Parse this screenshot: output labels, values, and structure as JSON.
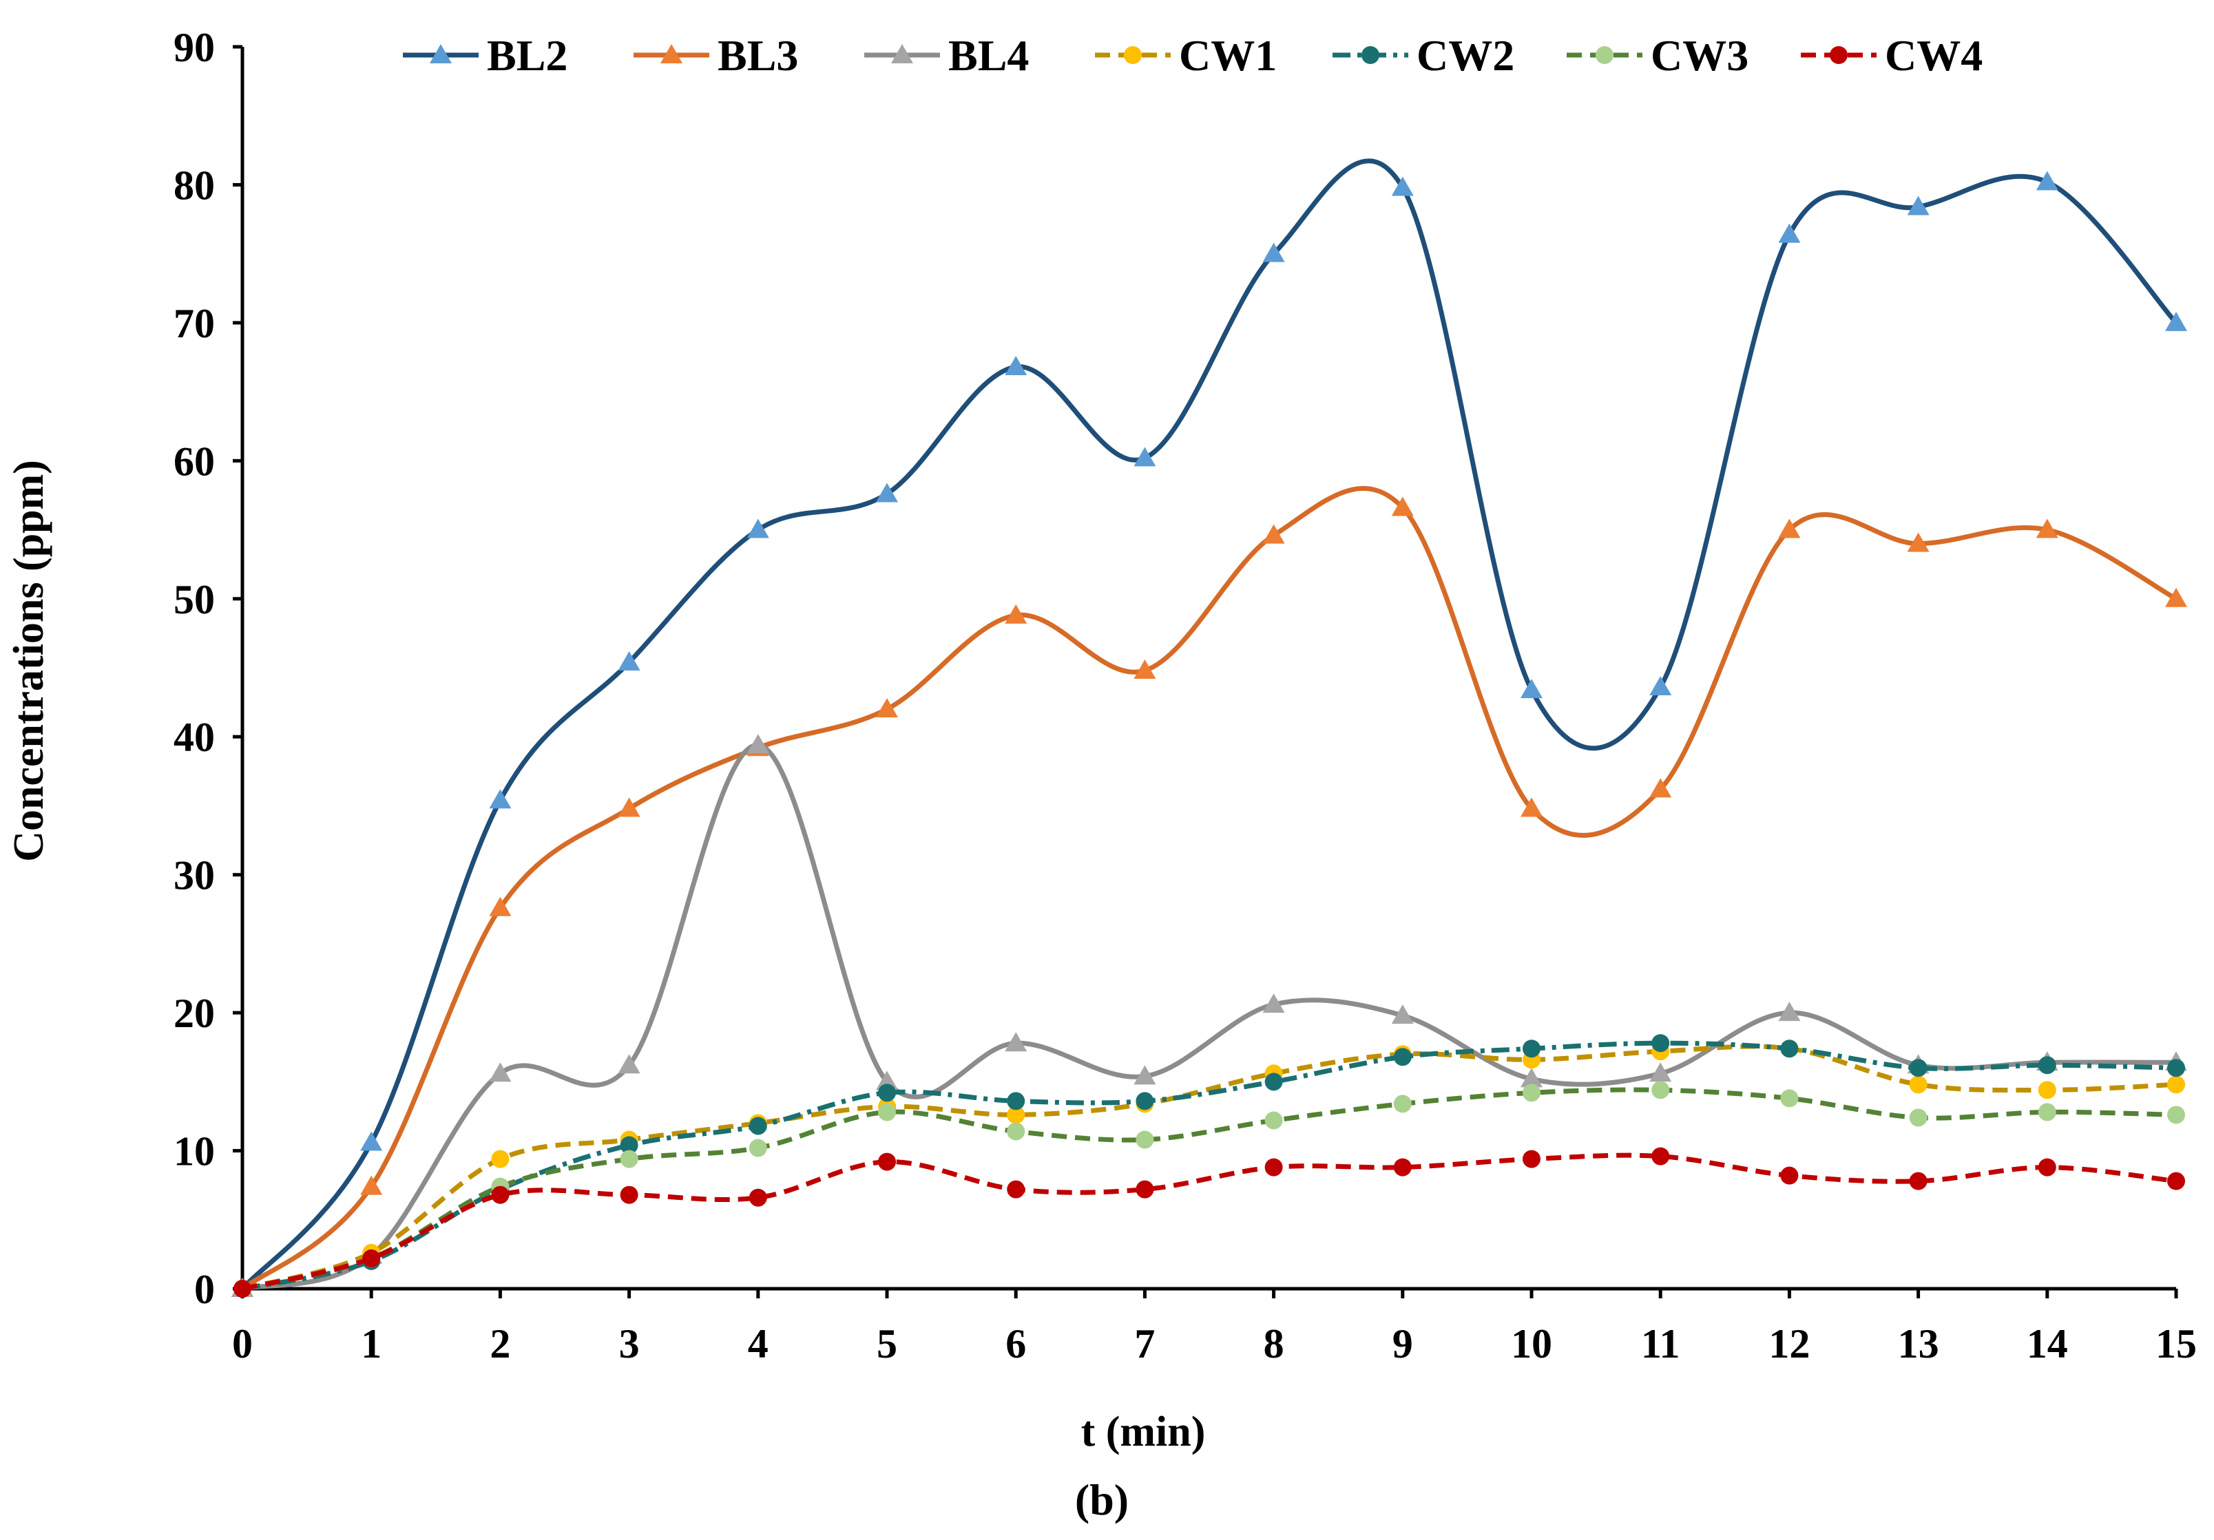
{
  "chart_data": {
    "type": "line",
    "title": "",
    "panel_label": "(b)",
    "xlabel": "t (min)",
    "ylabel": "Concentrations (ppm)",
    "xlim": [
      0,
      15
    ],
    "ylim": [
      0,
      90
    ],
    "x_ticks": [
      0,
      1,
      2,
      3,
      4,
      5,
      6,
      7,
      8,
      9,
      10,
      11,
      12,
      13,
      14,
      15
    ],
    "y_ticks": [
      0,
      10,
      20,
      30,
      40,
      50,
      60,
      70,
      80,
      90
    ],
    "grid": false,
    "legend_position": "top",
    "x": [
      0,
      1,
      2,
      3,
      4,
      5,
      6,
      7,
      8,
      9,
      10,
      11,
      12,
      13,
      14,
      15
    ],
    "series": [
      {
        "name": "BL2",
        "color": "#1f4e79",
        "marker_color": "#5b9bd5",
        "marker": "triangle",
        "line_style": "solid",
        "values": [
          0,
          10.6,
          35.4,
          45.4,
          55,
          57.6,
          66.8,
          60.2,
          75,
          79.8,
          43.4,
          43.6,
          76.4,
          78.4,
          80.2,
          70
        ]
      },
      {
        "name": "BL3",
        "color": "#d66b27",
        "marker_color": "#ed7d31",
        "marker": "triangle",
        "line_style": "solid",
        "values": [
          0,
          7.4,
          27.6,
          34.8,
          39.2,
          42,
          48.8,
          44.8,
          54.6,
          56.6,
          34.8,
          36.2,
          55,
          54,
          55,
          50
        ]
      },
      {
        "name": "BL4",
        "color": "#8c8c8c",
        "marker_color": "#a5a5a5",
        "marker": "triangle",
        "line_style": "solid",
        "values": [
          0,
          2.4,
          15.6,
          16.2,
          39.4,
          15,
          17.8,
          15.4,
          20.6,
          19.8,
          15.2,
          15.6,
          20,
          16.2,
          16.4,
          16.4
        ]
      },
      {
        "name": "CW1",
        "color": "#c09000",
        "marker_color": "#ffc000",
        "marker": "circle",
        "line_style": "dashed",
        "values": [
          0,
          2.6,
          9.4,
          10.8,
          12,
          13.2,
          12.6,
          13.4,
          15.6,
          17,
          16.6,
          17.2,
          17.4,
          14.8,
          14.4,
          14.8
        ]
      },
      {
        "name": "CW2",
        "color": "#1a7070",
        "marker_color": "#1a7070",
        "marker": "circle",
        "line_style": "dashdot",
        "values": [
          0,
          2,
          7.2,
          10.4,
          11.8,
          14.2,
          13.6,
          13.6,
          15,
          16.8,
          17.4,
          17.8,
          17.4,
          16,
          16.2,
          16
        ]
      },
      {
        "name": "CW3",
        "color": "#548235",
        "marker_color": "#a9d18e",
        "marker": "circle",
        "line_style": "dashed",
        "values": [
          0,
          2.2,
          7.4,
          9.4,
          10.2,
          12.8,
          11.4,
          10.8,
          12.2,
          13.4,
          14.2,
          14.4,
          13.8,
          12.4,
          12.8,
          12.6
        ]
      },
      {
        "name": "CW4",
        "color": "#c00000",
        "marker_color": "#c00000",
        "marker": "circle",
        "line_style": "dashed",
        "values": [
          0,
          2.2,
          6.8,
          6.8,
          6.6,
          9.2,
          7.2,
          7.2,
          8.8,
          8.8,
          9.4,
          9.6,
          8.2,
          7.8,
          8.8,
          7.8
        ]
      }
    ]
  }
}
